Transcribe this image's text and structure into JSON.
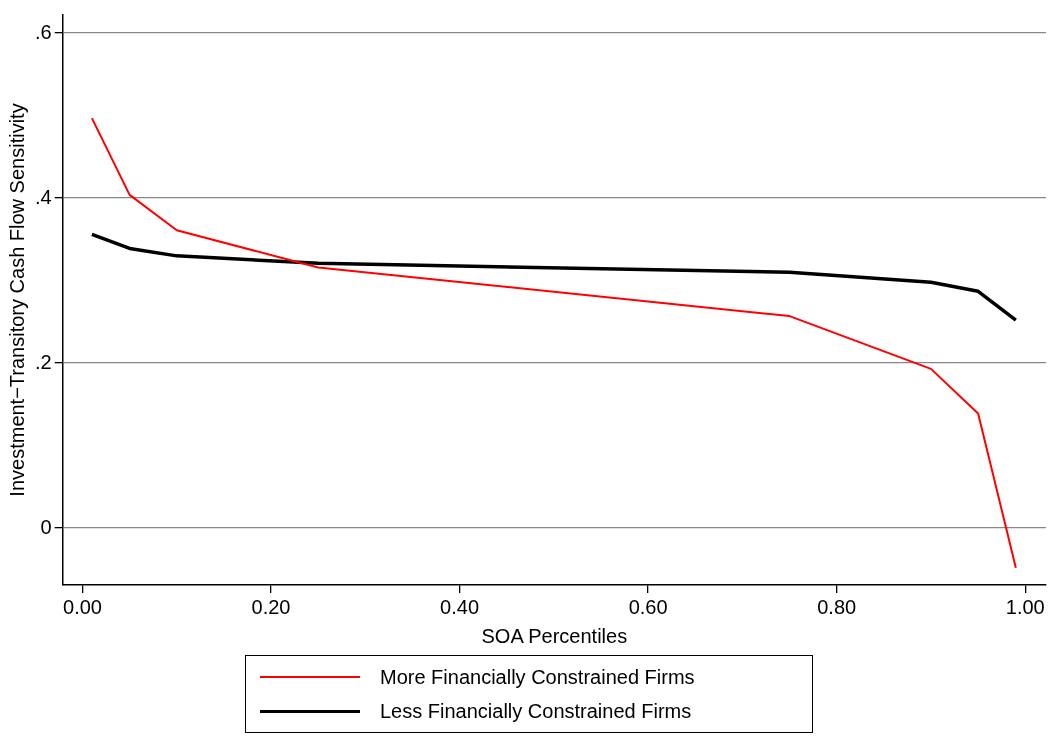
{
  "chart_data": {
    "type": "line",
    "xlabel": "SOA Percentiles",
    "ylabel": "Investment−Transitory Cash Flow Sensitivity",
    "x": [
      0.01,
      0.05,
      0.1,
      0.25,
      0.75,
      0.9,
      0.95,
      0.99
    ],
    "series": [
      {
        "name": "More Financially Constrained Firms",
        "color": "#ff0000",
        "values": [
          0.497,
          0.404,
          0.361,
          0.316,
          0.257,
          0.193,
          0.139,
          -0.048
        ]
      },
      {
        "name": "Less Financially Constrained Firms",
        "color": "#000000",
        "values": [
          0.356,
          0.339,
          0.33,
          0.321,
          0.31,
          0.298,
          0.287,
          0.252
        ]
      }
    ],
    "xlim": [
      -0.021,
      1.022
    ],
    "ylim": [
      -0.069,
      0.622
    ],
    "xticks": [
      {
        "value": 0,
        "label": "0.00"
      },
      {
        "value": 0.2,
        "label": "0.20"
      },
      {
        "value": 0.4,
        "label": "0.40"
      },
      {
        "value": 0.6,
        "label": "0.60"
      },
      {
        "value": 0.8,
        "label": "0.80"
      },
      {
        "value": 1,
        "label": "1.00"
      }
    ],
    "yticks": [
      0,
      {
        "value": 0.2,
        "label": ".2"
      },
      {
        "value": 0.4,
        "label": ".4"
      },
      {
        "value": 0.6,
        "label": ".6"
      }
    ],
    "grid": "y",
    "legend": "bottom",
    "marker": "none",
    "line_style": "solid"
  }
}
